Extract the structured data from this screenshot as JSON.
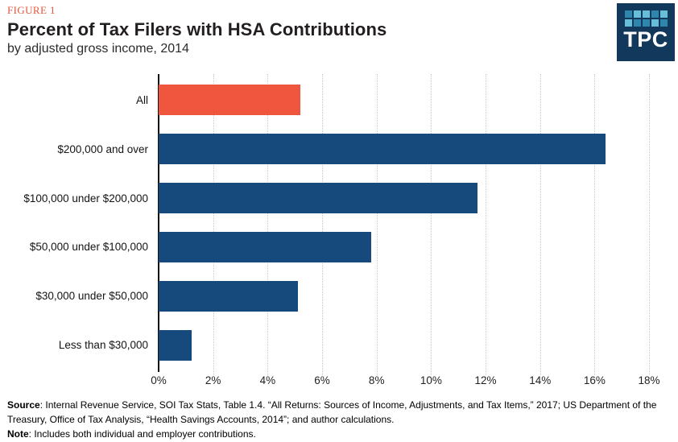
{
  "header": {
    "figure_label": "FIGURE 1",
    "title": "Percent of Tax Filers with HSA Contributions",
    "subtitle": "by adjusted gross income, 2014"
  },
  "logo": {
    "text": "TPC",
    "background": "#12395c",
    "squares": [
      "#2f86ad",
      "#66bed9",
      "#66bed9",
      "#2f86ad",
      "#66bed9",
      "#66bed9",
      "#2f86ad",
      "#2f86ad",
      "#66bed9",
      "#2f86ad"
    ]
  },
  "chart_data": {
    "type": "bar",
    "orientation": "horizontal",
    "title": "Percent of Tax Filers with HSA Contributions",
    "subtitle": "by adjusted gross income, 2014",
    "categories": [
      "All",
      "$200,000 and over",
      "$100,000 under $200,000",
      "$50,000 under $100,000",
      "$30,000 under $50,000",
      "Less than $30,000"
    ],
    "values": [
      5.2,
      16.4,
      11.7,
      7.8,
      5.1,
      1.2
    ],
    "unit": "%",
    "bar_colors": [
      "#f0553e",
      "#174a7c",
      "#174a7c",
      "#174a7c",
      "#174a7c",
      "#174a7c"
    ],
    "highlight_color": "#f0553e",
    "base_color": "#174a7c",
    "xlabel": "",
    "ylabel": "",
    "xlim": [
      0,
      18.56
    ],
    "x_tick_values": [
      0,
      2,
      4,
      6,
      8,
      10,
      12,
      14,
      16,
      18
    ],
    "x_tick_labels": [
      "0%",
      "2%",
      "4%",
      "6%",
      "8%",
      "10%",
      "12%",
      "14%",
      "16%",
      "18%"
    ],
    "grid": "vertical-dotted",
    "legend": "none"
  },
  "footer": {
    "source_label": "Source",
    "source_text": ": Internal Revenue Service, SOI Tax Stats, Table 1.4. “All Returns: Sources of Income, Adjustments, and Tax Items,” 2017; US Department of the Treasury, Office of Tax Analysis, “Health Savings Accounts, 2014”; and author calculations.",
    "note_label": "Note",
    "note_text": ": Includes both individual and employer contributions."
  }
}
